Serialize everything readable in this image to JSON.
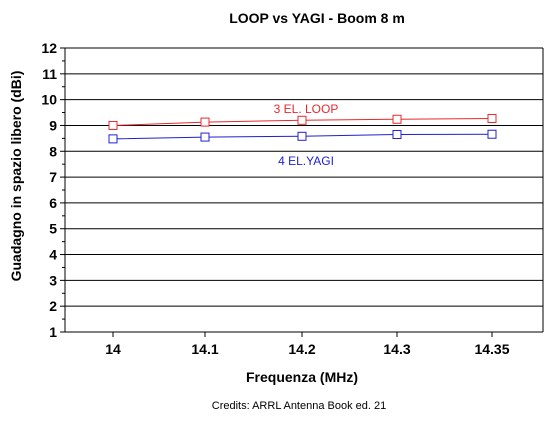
{
  "chart_data": {
    "type": "line",
    "title": "LOOP vs YAGI - Boom 8 m",
    "xlabel": "Frequenza (MHz)",
    "ylabel": "Guadagno in spazio libero (dBi)",
    "categories": [
      "14",
      "14.1",
      "14.2",
      "14.3",
      "14.35"
    ],
    "ylim": [
      1,
      12
    ],
    "yticks": [
      "1",
      "2",
      "3",
      "4",
      "5",
      "6",
      "7",
      "8",
      "9",
      "10",
      "11",
      "12"
    ],
    "grid": "horizontal",
    "series": [
      {
        "name": "3 EL. LOOP",
        "values": [
          9.0,
          9.13,
          9.2,
          9.24,
          9.27
        ],
        "color": "#e8282e",
        "marker": "square"
      },
      {
        "name": "4 EL.YAGI",
        "values": [
          8.48,
          8.55,
          8.58,
          8.65,
          8.66
        ],
        "color": "#2020d0",
        "marker": "square"
      }
    ]
  },
  "credits": "Credits: ARRL Antenna Book ed. 21"
}
